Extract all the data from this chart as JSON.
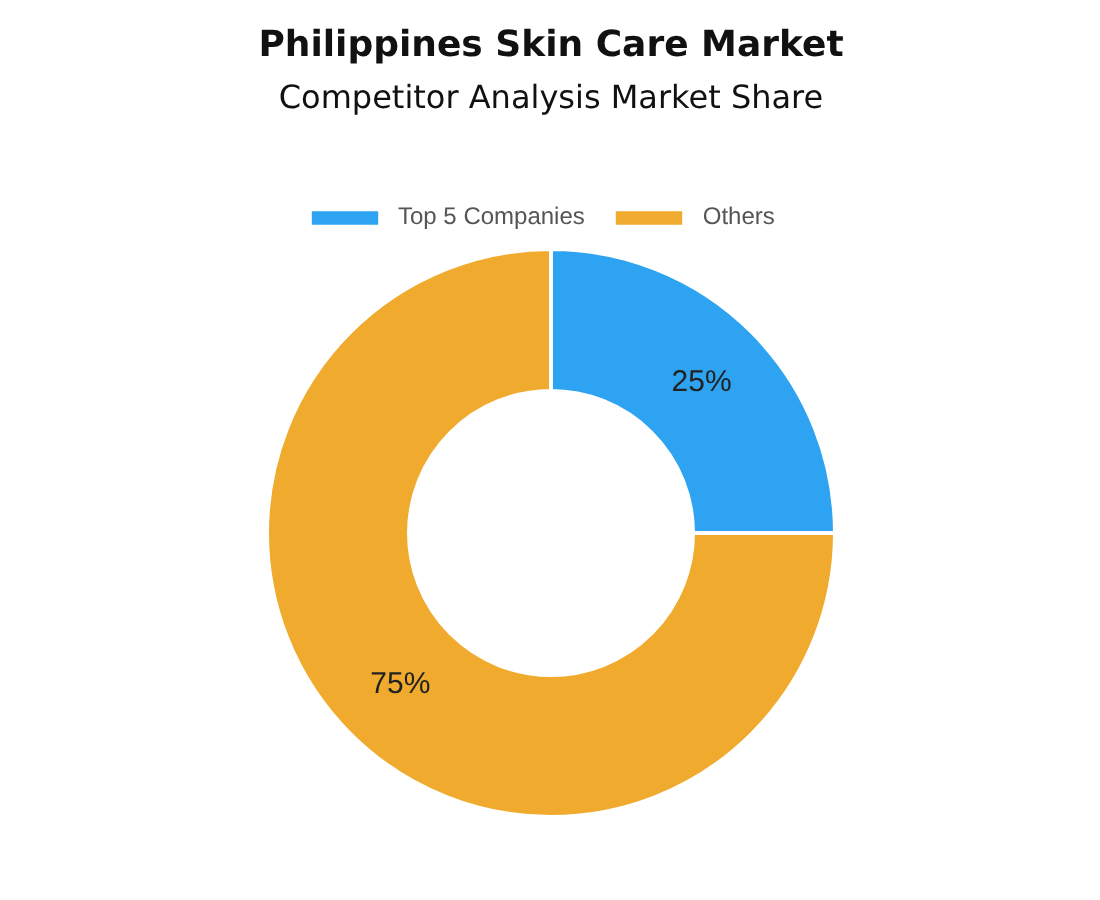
{
  "chart_data": {
    "type": "donut",
    "title": "Philippines Skin Care Market",
    "subtitle": "Competitor Analysis Market Share",
    "categories": [
      "Top 5 Companies",
      "Others"
    ],
    "values": [
      25,
      75
    ],
    "colors": [
      "#2ea3f2",
      "#f0ab2e"
    ],
    "value_labels": [
      "25%",
      "75%"
    ],
    "legend": "top"
  }
}
